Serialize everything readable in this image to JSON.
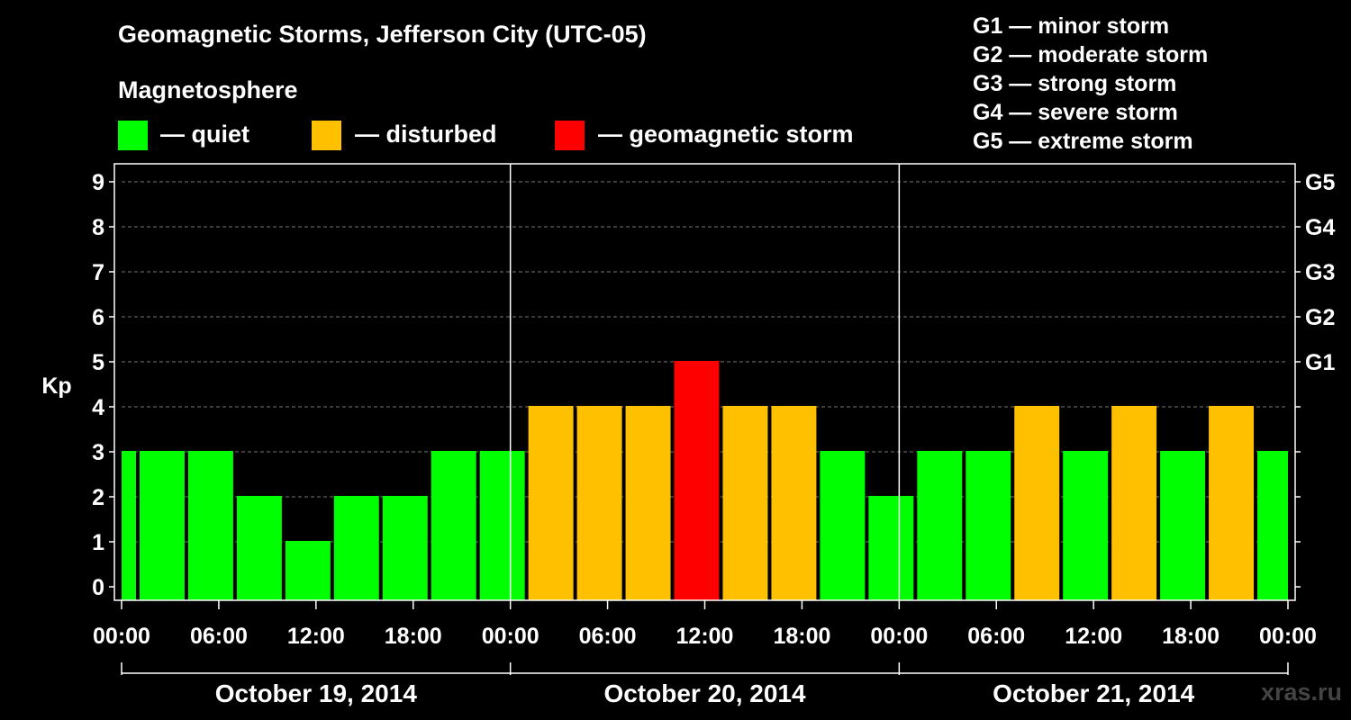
{
  "title": "Geomagnetic Storms, Jefferson City (UTC-05)",
  "subtitle": "Magnetosphere",
  "legend": [
    {
      "color": "#00ff00",
      "label": "— quiet"
    },
    {
      "color": "#ffc000",
      "label": "— disturbed"
    },
    {
      "color": "#ff0000",
      "label": "— geomagnetic storm"
    }
  ],
  "storm_scale": [
    "G1 — minor storm",
    "G2 — moderate storm",
    "G3 — strong storm",
    "G4 — severe storm",
    "G5 — extreme storm"
  ],
  "watermark": "xras.ru",
  "chart_data": {
    "type": "bar",
    "ylabel": "Kp",
    "xlabel": "",
    "ylim": [
      0,
      9
    ],
    "y_ticks": [
      "0",
      "1",
      "2",
      "3",
      "4",
      "5",
      "6",
      "7",
      "8",
      "9"
    ],
    "right_ticks": [
      {
        "kp": 5,
        "label": "G1"
      },
      {
        "kp": 6,
        "label": "G2"
      },
      {
        "kp": 7,
        "label": "G3"
      },
      {
        "kp": 8,
        "label": "G4"
      },
      {
        "kp": 9,
        "label": "G5"
      }
    ],
    "x_tick_labels": [
      "00:00",
      "06:00",
      "12:00",
      "18:00",
      "00:00",
      "06:00",
      "12:00",
      "18:00",
      "00:00",
      "06:00",
      "12:00",
      "18:00",
      "00:00"
    ],
    "days": [
      "October 19, 2014",
      "October 20, 2014",
      "October 21, 2014"
    ],
    "x_range_hours": [
      0,
      72
    ],
    "grid": true,
    "bar_width_hours": 3,
    "bars": [
      {
        "start_hour": -2,
        "value": 3,
        "color": "green"
      },
      {
        "start_hour": 1,
        "value": 3,
        "color": "green"
      },
      {
        "start_hour": 4,
        "value": 3,
        "color": "green"
      },
      {
        "start_hour": 7,
        "value": 2,
        "color": "green"
      },
      {
        "start_hour": 10,
        "value": 1,
        "color": "green"
      },
      {
        "start_hour": 13,
        "value": 2,
        "color": "green"
      },
      {
        "start_hour": 16,
        "value": 2,
        "color": "green"
      },
      {
        "start_hour": 19,
        "value": 3,
        "color": "green"
      },
      {
        "start_hour": 22,
        "value": 3,
        "color": "green"
      },
      {
        "start_hour": 25,
        "value": 4,
        "color": "orange"
      },
      {
        "start_hour": 28,
        "value": 4,
        "color": "orange"
      },
      {
        "start_hour": 31,
        "value": 4,
        "color": "orange"
      },
      {
        "start_hour": 34,
        "value": 5,
        "color": "red"
      },
      {
        "start_hour": 37,
        "value": 4,
        "color": "orange"
      },
      {
        "start_hour": 40,
        "value": 4,
        "color": "orange"
      },
      {
        "start_hour": 43,
        "value": 3,
        "color": "green"
      },
      {
        "start_hour": 46,
        "value": 2,
        "color": "green"
      },
      {
        "start_hour": 49,
        "value": 3,
        "color": "green"
      },
      {
        "start_hour": 52,
        "value": 3,
        "color": "green"
      },
      {
        "start_hour": 55,
        "value": 4,
        "color": "orange"
      },
      {
        "start_hour": 58,
        "value": 3,
        "color": "green"
      },
      {
        "start_hour": 61,
        "value": 4,
        "color": "orange"
      },
      {
        "start_hour": 64,
        "value": 3,
        "color": "green"
      },
      {
        "start_hour": 67,
        "value": 4,
        "color": "orange"
      },
      {
        "start_hour": 70,
        "value": 3,
        "color": "green"
      }
    ],
    "colors": {
      "green": "#00ff00",
      "orange": "#ffc000",
      "red": "#ff0000"
    }
  }
}
